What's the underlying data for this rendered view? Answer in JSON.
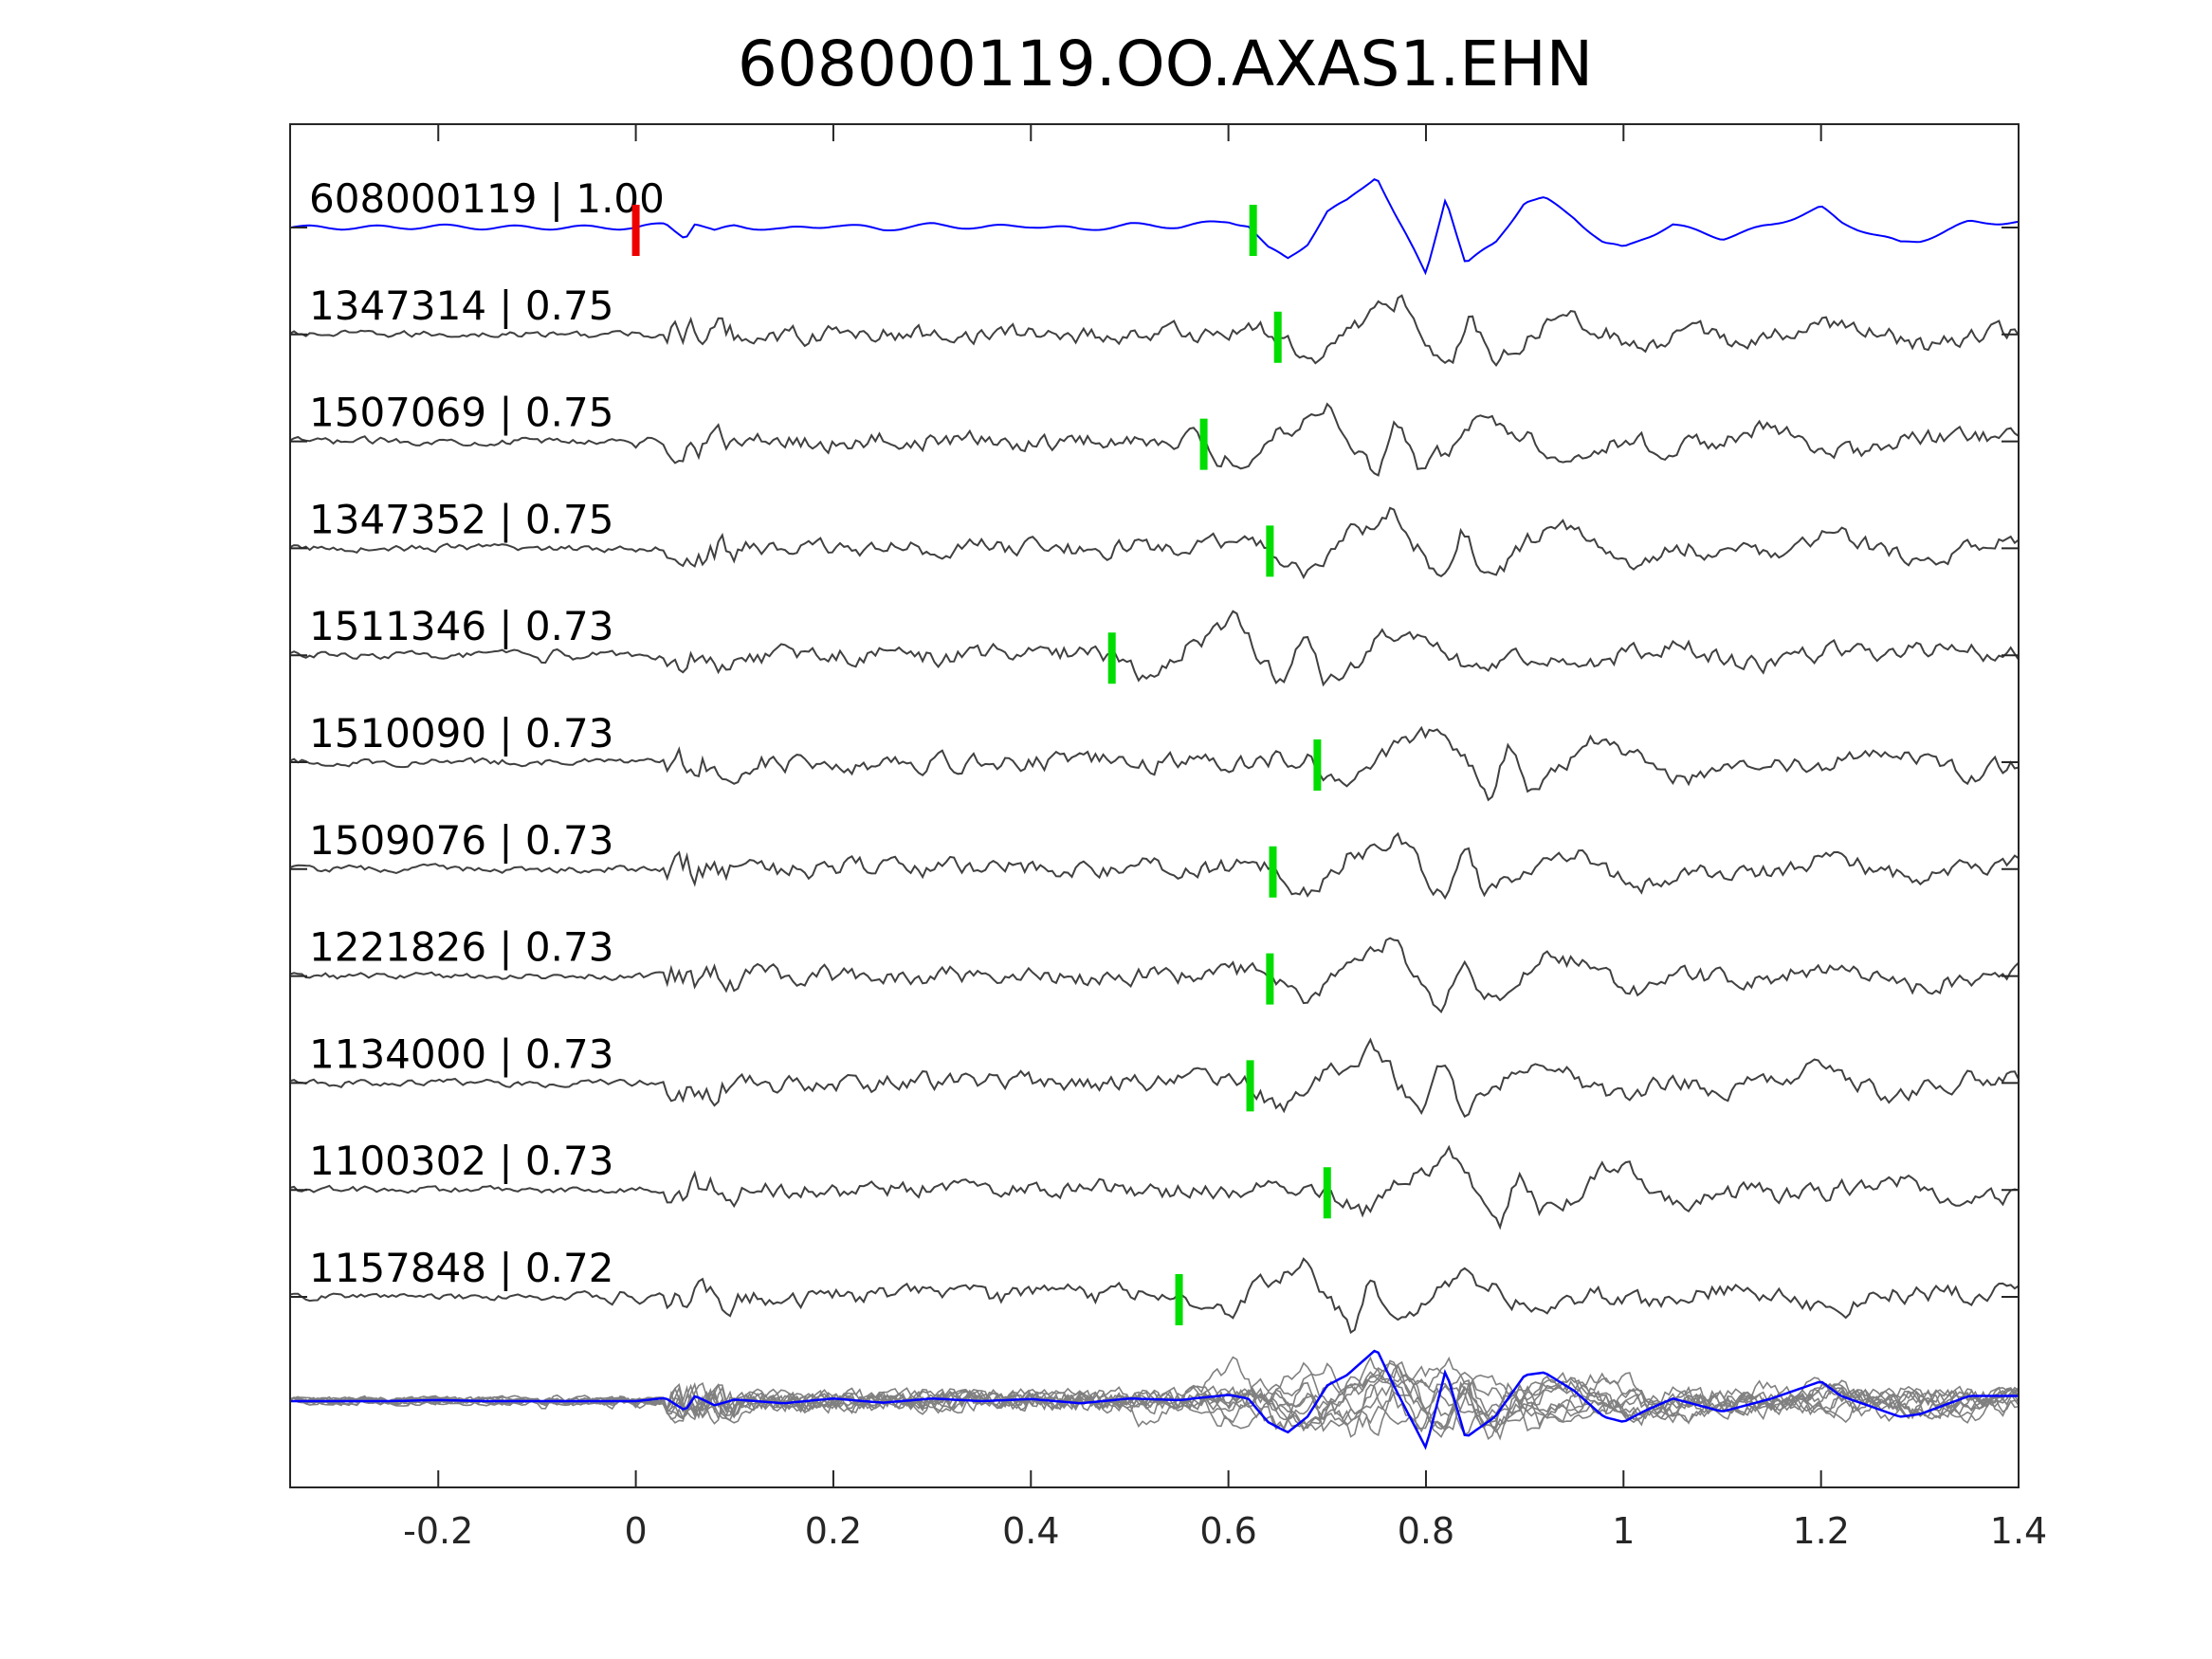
{
  "chart_data": {
    "type": "line",
    "title": "608000119.OO.AXAS1.EHN",
    "xlabel": "",
    "ylabel": "",
    "xlim": [
      -0.35,
      1.4
    ],
    "xticks": [
      -0.2,
      0,
      0.2,
      0.4,
      0.6,
      0.8,
      1,
      1.2,
      1.4
    ],
    "xtick_labels": [
      "-0.2",
      "0",
      "0.2",
      "0.4",
      "0.6",
      "0.8",
      "1",
      "1.2",
      "1.4"
    ],
    "grid": false,
    "legend": "none",
    "colors": {
      "template": "#0000ff",
      "matched": "#404040",
      "overlay": "#808080",
      "pick": "#00dd00",
      "reference_marker": "#ee0000",
      "axes": "#262626"
    },
    "reference_marker_x": 0,
    "traces": [
      {
        "id": "608000119",
        "cc": "1.00",
        "label": "608000119 | 1.00",
        "pick": 0.625,
        "template": true
      },
      {
        "id": "1347314",
        "cc": "0.75",
        "label": "1347314 | 0.75",
        "pick": 0.65
      },
      {
        "id": "1507069",
        "cc": "0.75",
        "label": "1507069 | 0.75",
        "pick": 0.575
      },
      {
        "id": "1347352",
        "cc": "0.75",
        "label": "1347352 | 0.75",
        "pick": 0.642
      },
      {
        "id": "1511346",
        "cc": "0.73",
        "label": "1511346 | 0.73",
        "pick": 0.482
      },
      {
        "id": "1510090",
        "cc": "0.73",
        "label": "1510090 | 0.73",
        "pick": 0.69
      },
      {
        "id": "1509076",
        "cc": "0.73",
        "label": "1509076 | 0.73",
        "pick": 0.645
      },
      {
        "id": "1221826",
        "cc": "0.73",
        "label": "1221826 | 0.73",
        "pick": 0.642
      },
      {
        "id": "1134000",
        "cc": "0.73",
        "label": "1134000 | 0.73",
        "pick": 0.622
      },
      {
        "id": "1100302",
        "cc": "0.73",
        "label": "1100302 | 0.73",
        "pick": 0.7
      },
      {
        "id": "1157848",
        "cc": "0.72",
        "label": "1157848 | 0.72",
        "pick": 0.55
      }
    ],
    "template_waveform": {
      "x": [
        -0.35,
        -0.3,
        -0.25,
        -0.2,
        -0.15,
        -0.1,
        -0.05,
        0,
        0.03,
        0.05,
        0.06,
        0.08,
        0.1,
        0.15,
        0.2,
        0.25,
        0.3,
        0.35,
        0.4,
        0.45,
        0.5,
        0.55,
        0.58,
        0.6,
        0.62,
        0.64,
        0.66,
        0.68,
        0.7,
        0.72,
        0.75,
        0.77,
        0.8,
        0.82,
        0.84,
        0.87,
        0.9,
        0.92,
        0.95,
        0.98,
        1.0,
        1.02,
        1.05,
        1.08,
        1.1,
        1.15,
        1.2,
        1.22,
        1.25,
        1.28,
        1.3,
        1.35,
        1.4
      ],
      "y": [
        0,
        0,
        0,
        0.02,
        0,
        0,
        0,
        0,
        0.06,
        -0.18,
        0.1,
        -0.08,
        0.03,
        -0.04,
        0.05,
        -0.03,
        0.05,
        0,
        0.04,
        -0.04,
        0.05,
        0.02,
        0.08,
        0.12,
        0.05,
        -0.4,
        -0.6,
        -0.3,
        0.3,
        0.5,
        1.0,
        0.2,
        -0.9,
        0.6,
        -0.7,
        -0.3,
        0.5,
        0.55,
        0.2,
        -0.3,
        -0.4,
        -0.2,
        0.05,
        -0.1,
        -0.2,
        0.05,
        0.38,
        0.1,
        -0.1,
        -0.3,
        -0.25,
        0.1,
        0.1
      ]
    }
  }
}
